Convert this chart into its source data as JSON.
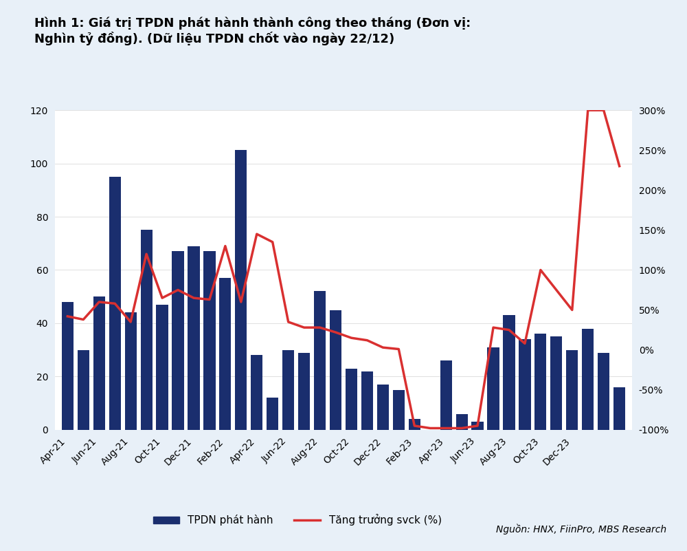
{
  "title": "Hình 1: Giá trị TPDN phát hành thành công theo tháng (Đơn vị:\nNghìn tỷ đồng). (Dữ liệu TPDN chốt vào ngày 22/12)",
  "source": "Nguồn: HNX, FiinPro, MBS Research",
  "bar_color": "#1a2e6e",
  "line_color": "#d93030",
  "legend_bar_label": "TPDN phát hành",
  "legend_line_label": "Tăng trưởng svck (%)",
  "background_color": "#e8f0f8",
  "plot_background": "#ffffff",
  "x_labels": [
    "Apr-21",
    "Jun-21",
    "Aug-21",
    "Oct-21",
    "Dec-21",
    "Feb-22",
    "Apr-22",
    "Jun-22",
    "Aug-22",
    "Oct-22",
    "Dec-22",
    "Feb-23",
    "Apr-23",
    "Jun-23",
    "Aug-23",
    "Oct-23",
    "Dec-23"
  ],
  "bar_values": [
    48,
    30,
    50,
    95,
    44,
    75,
    47,
    67,
    69,
    67,
    57,
    105,
    28,
    12,
    30,
    29,
    52,
    45,
    23,
    22,
    17,
    15,
    4,
    0,
    26,
    6,
    3,
    31,
    43,
    34,
    36,
    35,
    30,
    38,
    29,
    16
  ],
  "line_values": [
    42,
    38,
    60,
    58,
    35,
    120,
    65,
    75,
    65,
    63,
    130,
    60,
    145,
    135,
    35,
    28,
    28,
    22,
    15,
    12,
    3,
    1,
    -95,
    -98,
    -98,
    -98,
    -95,
    28,
    25,
    8,
    100,
    75,
    50,
    300,
    300,
    230
  ],
  "ylim_left": [
    0,
    120
  ],
  "ylim_right": [
    -100,
    300
  ],
  "yticks_left": [
    0,
    20,
    40,
    60,
    80,
    100,
    120
  ],
  "yticks_right": [
    -100,
    -50,
    0,
    50,
    100,
    150,
    200,
    250,
    300
  ],
  "ytick_labels_right": [
    "-100%",
    "-50%",
    "0%",
    "50%",
    "100%",
    "150%",
    "200%",
    "250%",
    "300%"
  ],
  "title_fontsize": 13,
  "axis_fontsize": 10,
  "legend_fontsize": 11
}
